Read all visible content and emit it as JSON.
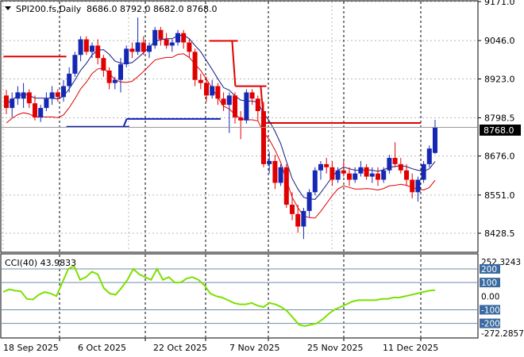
{
  "chart_data": [
    {
      "type": "candlestick",
      "title": "SPI200.fs,Daily",
      "ohlc_header": "8686.0 8792.0 8682.0 8768.0",
      "last_price_label": "8768.0",
      "ylim": [
        8370,
        9171
      ],
      "y_ticks": [
        "9171.0",
        "9046.0",
        "8923.0",
        "8798.5",
        "8676.0",
        "8551.0",
        "8428.5"
      ],
      "x_ticks": [
        "18 Sep 2025",
        "6 Oct 2025",
        "22 Oct 2025",
        "7 Nov 2025",
        "25 Nov 2025",
        "11 Dec 2025"
      ],
      "candles": [
        {
          "o": 8870,
          "h": 8888,
          "l": 8810,
          "c": 8830
        },
        {
          "o": 8830,
          "h": 8880,
          "l": 8800,
          "c": 8860
        },
        {
          "o": 8860,
          "h": 8900,
          "l": 8840,
          "c": 8880
        },
        {
          "o": 8860,
          "h": 8910,
          "l": 8830,
          "c": 8880
        },
        {
          "o": 8880,
          "h": 8890,
          "l": 8830,
          "c": 8845
        },
        {
          "o": 8845,
          "h": 8870,
          "l": 8790,
          "c": 8800
        },
        {
          "o": 8800,
          "h": 8840,
          "l": 8785,
          "c": 8830
        },
        {
          "o": 8830,
          "h": 8880,
          "l": 8820,
          "c": 8860
        },
        {
          "o": 8860,
          "h": 8900,
          "l": 8840,
          "c": 8880
        },
        {
          "o": 8880,
          "h": 8890,
          "l": 8850,
          "c": 8865
        },
        {
          "o": 8865,
          "h": 8920,
          "l": 8850,
          "c": 8900
        },
        {
          "o": 8900,
          "h": 8960,
          "l": 8880,
          "c": 8940
        },
        {
          "o": 8940,
          "h": 9010,
          "l": 8930,
          "c": 9000
        },
        {
          "o": 9000,
          "h": 9060,
          "l": 8980,
          "c": 9050
        },
        {
          "o": 9050,
          "h": 9060,
          "l": 9000,
          "c": 9010
        },
        {
          "o": 9010,
          "h": 9040,
          "l": 8990,
          "c": 9030
        },
        {
          "o": 9030,
          "h": 9050,
          "l": 8970,
          "c": 8990
        },
        {
          "o": 8990,
          "h": 9000,
          "l": 8930,
          "c": 8950
        },
        {
          "o": 8950,
          "h": 8960,
          "l": 8890,
          "c": 8910
        },
        {
          "o": 8910,
          "h": 8930,
          "l": 8890,
          "c": 8920
        },
        {
          "o": 8920,
          "h": 8990,
          "l": 8880,
          "c": 8970
        },
        {
          "o": 8970,
          "h": 9030,
          "l": 8960,
          "c": 9020
        },
        {
          "o": 9020,
          "h": 9040,
          "l": 8990,
          "c": 9010
        },
        {
          "o": 9010,
          "h": 9120,
          "l": 9000,
          "c": 9040
        },
        {
          "o": 9040,
          "h": 9060,
          "l": 9000,
          "c": 9010
        },
        {
          "o": 9010,
          "h": 9040,
          "l": 8990,
          "c": 9030
        },
        {
          "o": 9030,
          "h": 9090,
          "l": 9020,
          "c": 9080
        },
        {
          "o": 9080,
          "h": 9090,
          "l": 9030,
          "c": 9050
        },
        {
          "o": 9050,
          "h": 9070,
          "l": 9020,
          "c": 9030
        },
        {
          "o": 9030,
          "h": 9050,
          "l": 9010,
          "c": 9040
        },
        {
          "o": 9040,
          "h": 9080,
          "l": 9030,
          "c": 9070
        },
        {
          "o": 9070,
          "h": 9080,
          "l": 9020,
          "c": 9040
        },
        {
          "o": 9040,
          "h": 9050,
          "l": 8990,
          "c": 9010
        },
        {
          "o": 9010,
          "h": 9020,
          "l": 8900,
          "c": 8920
        },
        {
          "o": 8920,
          "h": 8940,
          "l": 8890,
          "c": 8910
        },
        {
          "o": 8910,
          "h": 8930,
          "l": 8850,
          "c": 8870
        },
        {
          "o": 8870,
          "h": 8920,
          "l": 8860,
          "c": 8900
        },
        {
          "o": 8900,
          "h": 8910,
          "l": 8840,
          "c": 8860
        },
        {
          "o": 8860,
          "h": 8880,
          "l": 8820,
          "c": 8840
        },
        {
          "o": 8840,
          "h": 8880,
          "l": 8750,
          "c": 8870
        },
        {
          "o": 8870,
          "h": 8880,
          "l": 8780,
          "c": 8800
        },
        {
          "o": 8800,
          "h": 8820,
          "l": 8730,
          "c": 8790
        },
        {
          "o": 8790,
          "h": 8890,
          "l": 8780,
          "c": 8880
        },
        {
          "o": 8880,
          "h": 8890,
          "l": 8840,
          "c": 8860
        },
        {
          "o": 8860,
          "h": 8870,
          "l": 8790,
          "c": 8820
        },
        {
          "o": 8820,
          "h": 8850,
          "l": 8640,
          "c": 8650
        },
        {
          "o": 8650,
          "h": 8690,
          "l": 8620,
          "c": 8660
        },
        {
          "o": 8660,
          "h": 8680,
          "l": 8570,
          "c": 8590
        },
        {
          "o": 8590,
          "h": 8650,
          "l": 8580,
          "c": 8640
        },
        {
          "o": 8640,
          "h": 8650,
          "l": 8510,
          "c": 8520
        },
        {
          "o": 8520,
          "h": 8560,
          "l": 8470,
          "c": 8490
        },
        {
          "o": 8490,
          "h": 8520,
          "l": 8430,
          "c": 8450
        },
        {
          "o": 8450,
          "h": 8510,
          "l": 8410,
          "c": 8500
        },
        {
          "o": 8500,
          "h": 8570,
          "l": 8480,
          "c": 8560
        },
        {
          "o": 8560,
          "h": 8640,
          "l": 8550,
          "c": 8630
        },
        {
          "o": 8630,
          "h": 8660,
          "l": 8600,
          "c": 8650
        },
        {
          "o": 8650,
          "h": 8670,
          "l": 8620,
          "c": 8640
        },
        {
          "o": 8640,
          "h": 8660,
          "l": 8580,
          "c": 8600
        },
        {
          "o": 8600,
          "h": 8640,
          "l": 8590,
          "c": 8630
        },
        {
          "o": 8630,
          "h": 8660,
          "l": 8610,
          "c": 8620
        },
        {
          "o": 8620,
          "h": 8640,
          "l": 8580,
          "c": 8600
        },
        {
          "o": 8600,
          "h": 8640,
          "l": 8590,
          "c": 8620
        },
        {
          "o": 8620,
          "h": 8660,
          "l": 8610,
          "c": 8640
        },
        {
          "o": 8640,
          "h": 8650,
          "l": 8600,
          "c": 8610
        },
        {
          "o": 8610,
          "h": 8640,
          "l": 8590,
          "c": 8620
        },
        {
          "o": 8620,
          "h": 8640,
          "l": 8580,
          "c": 8600
        },
        {
          "o": 8600,
          "h": 8640,
          "l": 8590,
          "c": 8630
        },
        {
          "o": 8630,
          "h": 8680,
          "l": 8620,
          "c": 8670
        },
        {
          "o": 8670,
          "h": 8720,
          "l": 8640,
          "c": 8650
        },
        {
          "o": 8650,
          "h": 8670,
          "l": 8620,
          "c": 8630
        },
        {
          "o": 8630,
          "h": 8650,
          "l": 8580,
          "c": 8600
        },
        {
          "o": 8600,
          "h": 8620,
          "l": 8540,
          "c": 8560
        },
        {
          "o": 8560,
          "h": 8610,
          "l": 8530,
          "c": 8600
        },
        {
          "o": 8600,
          "h": 8660,
          "l": 8590,
          "c": 8650
        },
        {
          "o": 8650,
          "h": 8710,
          "l": 8640,
          "c": 8700
        },
        {
          "o": 8686,
          "h": 8792,
          "l": 8682,
          "c": 8768
        }
      ],
      "red_stop_line": [
        {
          "from": 0,
          "to": 10,
          "value": 8995
        },
        {
          "from": 36,
          "to": 40,
          "value": 9045
        },
        {
          "from": 40,
          "to": 45,
          "value": 8900
        },
        {
          "from": 45,
          "to": 72,
          "value": 8782
        }
      ],
      "blue_stop_line": [
        {
          "from": 11,
          "to": 21,
          "value": 8770
        },
        {
          "from": 21,
          "to": 37,
          "value": 8795
        }
      ]
    },
    {
      "type": "line",
      "title": "CCI(40) 43.9833",
      "ylim": [
        -272.2857,
        252.3243
      ],
      "y_ticks": [
        "252.3243",
        "200",
        "100",
        "0.00",
        "-100",
        "-200",
        "-272.2857"
      ],
      "levels": [
        200,
        100,
        -100,
        -200
      ],
      "values": [
        30,
        50,
        40,
        35,
        -20,
        -25,
        10,
        30,
        20,
        0,
        100,
        200,
        220,
        120,
        140,
        180,
        160,
        60,
        20,
        10,
        60,
        120,
        200,
        160,
        140,
        120,
        200,
        120,
        140,
        100,
        100,
        130,
        140,
        120,
        80,
        20,
        0,
        -10,
        -30,
        -50,
        -60,
        -60,
        -50,
        -70,
        -80,
        -50,
        -60,
        -80,
        -110,
        -160,
        -210,
        -220,
        -210,
        -200,
        -170,
        -130,
        -100,
        -80,
        -60,
        -40,
        -30,
        -30,
        -30,
        -30,
        -20,
        -20,
        -10,
        -10,
        0,
        10,
        20,
        30,
        40,
        44
      ]
    }
  ]
}
